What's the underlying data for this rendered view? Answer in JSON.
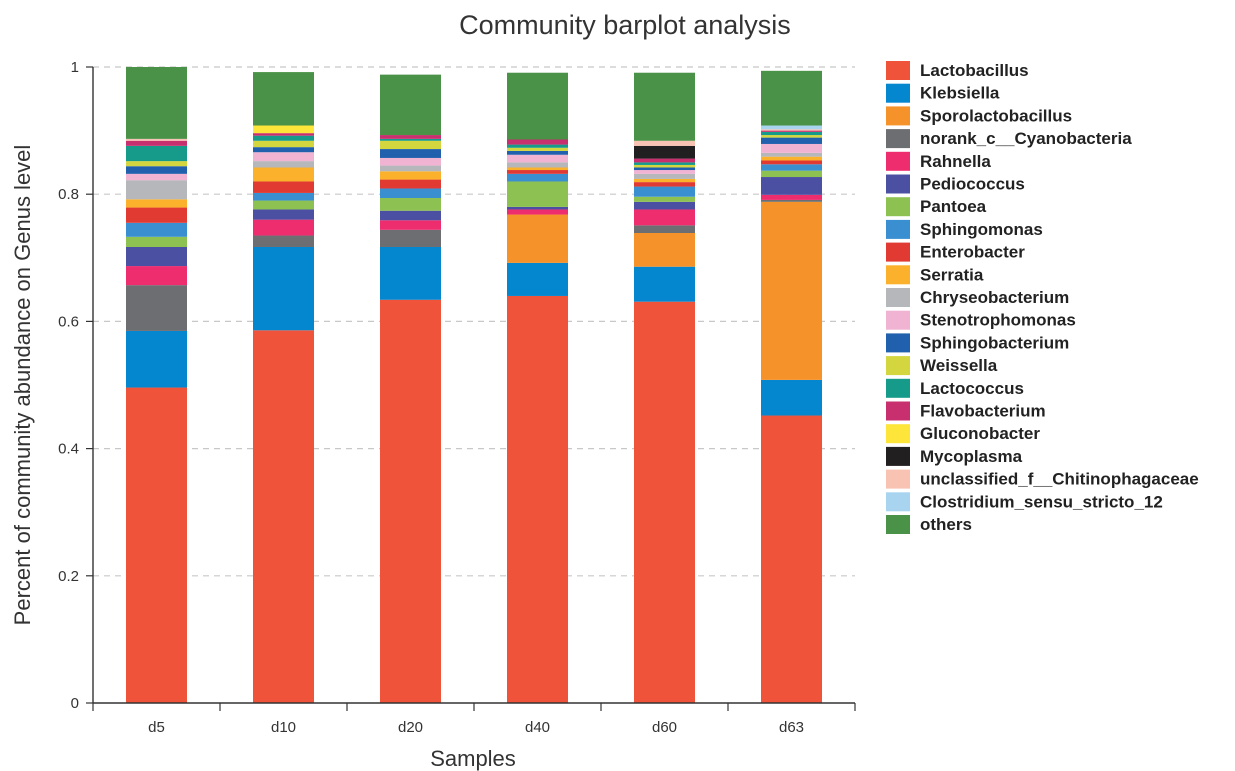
{
  "chart_data": {
    "type": "bar",
    "stacked": true,
    "title": "Community barplot analysis",
    "xlabel": "Samples",
    "ylabel": "Percent of community abundance on Genus level",
    "ylim": [
      0,
      1
    ],
    "yticks": [
      "0",
      "0.2",
      "0.4",
      "0.6",
      "0.8",
      "1"
    ],
    "grid": true,
    "legend_position": "right",
    "categories": [
      "d5",
      "d10",
      "d20",
      "d40",
      "d60",
      "d63"
    ],
    "series": [
      {
        "name": "Lactobacillus",
        "color": "#EF533A",
        "values": [
          0.496,
          0.586,
          0.634,
          0.64,
          0.631,
          0.452
        ]
      },
      {
        "name": "Klebsiella",
        "color": "#0487CF",
        "values": [
          0.089,
          0.131,
          0.083,
          0.052,
          0.055,
          0.056
        ]
      },
      {
        "name": "Sporolactobacillus",
        "color": "#F6922A",
        "values": [
          0.0,
          0.0,
          0.0,
          0.076,
          0.053,
          0.28
        ]
      },
      {
        "name": "norank_c__Cyanobacteria",
        "color": "#6D6E71",
        "values": [
          0.072,
          0.018,
          0.027,
          0.0,
          0.012,
          0.003
        ]
      },
      {
        "name": "Rahnella",
        "color": "#EE2D6E",
        "values": [
          0.03,
          0.025,
          0.015,
          0.008,
          0.025,
          0.008
        ]
      },
      {
        "name": "Pediococcus",
        "color": "#4B50A2",
        "values": [
          0.03,
          0.016,
          0.015,
          0.004,
          0.012,
          0.028
        ]
      },
      {
        "name": "Pantoea",
        "color": "#8DC151",
        "values": [
          0.016,
          0.014,
          0.02,
          0.04,
          0.008,
          0.01
        ]
      },
      {
        "name": "Sphingomonas",
        "color": "#3A8FD1",
        "values": [
          0.022,
          0.012,
          0.015,
          0.012,
          0.016,
          0.01
        ]
      },
      {
        "name": "Enterobacter",
        "color": "#E03A33",
        "values": [
          0.024,
          0.018,
          0.014,
          0.006,
          0.007,
          0.006
        ]
      },
      {
        "name": "Serratia",
        "color": "#FBB12C",
        "values": [
          0.013,
          0.022,
          0.013,
          0.004,
          0.005,
          0.006
        ]
      },
      {
        "name": "Chryseobacterium",
        "color": "#B5B7BA",
        "values": [
          0.03,
          0.01,
          0.009,
          0.008,
          0.008,
          0.006
        ]
      },
      {
        "name": "Stenotrophomonas",
        "color": "#F0B3D2",
        "values": [
          0.01,
          0.014,
          0.012,
          0.012,
          0.006,
          0.014
        ]
      },
      {
        "name": "Sphingobacterium",
        "color": "#2160AD",
        "values": [
          0.012,
          0.008,
          0.014,
          0.006,
          0.004,
          0.01
        ]
      },
      {
        "name": "Weissella",
        "color": "#D3D63E",
        "values": [
          0.008,
          0.01,
          0.013,
          0.005,
          0.004,
          0.004
        ]
      },
      {
        "name": "Lactococcus",
        "color": "#169A8A",
        "values": [
          0.024,
          0.008,
          0.003,
          0.005,
          0.004,
          0.005
        ]
      },
      {
        "name": "Flavobacterium",
        "color": "#C72F6E",
        "values": [
          0.008,
          0.004,
          0.006,
          0.008,
          0.006,
          0.002
        ]
      },
      {
        "name": "Gluconobacter",
        "color": "#FDE53A",
        "values": [
          0.0,
          0.012,
          0.0,
          0.0,
          0.0,
          0.0
        ]
      },
      {
        "name": "Mycoplasma",
        "color": "#221F20",
        "values": [
          0.0,
          0.0,
          0.0,
          0.0,
          0.02,
          0.0
        ]
      },
      {
        "name": "unclassified_f__Chitinophagaceae",
        "color": "#F8C3B2",
        "values": [
          0.003,
          0.0,
          0.0,
          0.0,
          0.008,
          0.002
        ]
      },
      {
        "name": "Clostridium_sensu_stricto_12",
        "color": "#A8D4EF",
        "values": [
          0.0,
          0.0,
          0.0,
          0.0,
          0.0,
          0.006
        ]
      },
      {
        "name": "others",
        "color": "#4A9248",
        "values": [
          0.113,
          0.084,
          0.095,
          0.105,
          0.107,
          0.086
        ]
      }
    ]
  }
}
